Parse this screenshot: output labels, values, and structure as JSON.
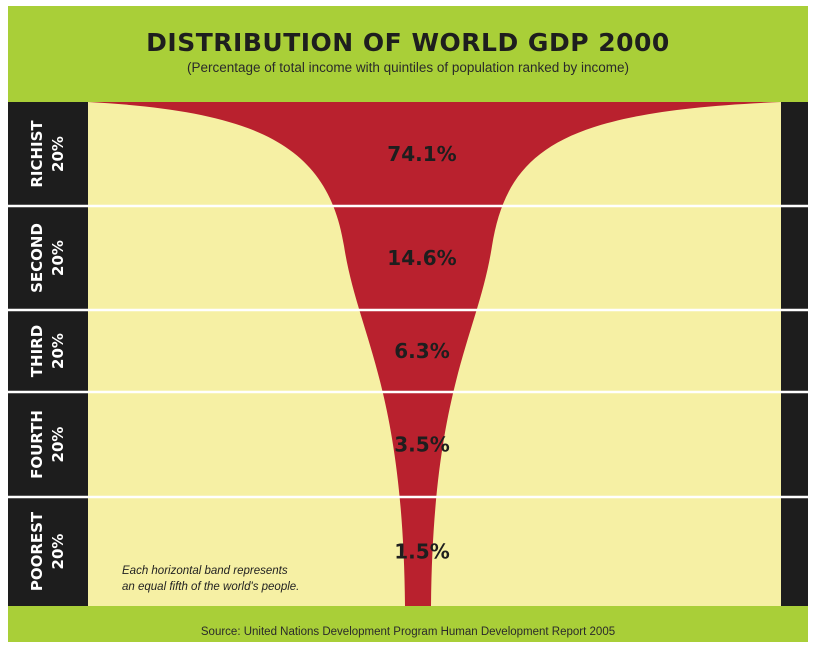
{
  "chart_data": {
    "type": "area",
    "title": "DISTRIBUTION OF WORLD GDP 2000",
    "subtitle": "(Percentage of total income with quintiles of population ranked by income)",
    "bands": [
      {
        "label_line1": "RICHIST",
        "label_line2": "20%",
        "value": 74.1,
        "value_label": "74.1%"
      },
      {
        "label_line1": "SECOND",
        "label_line2": "20%",
        "value": 14.6,
        "value_label": "14.6%"
      },
      {
        "label_line1": "THIRD",
        "label_line2": "20%",
        "value": 6.3,
        "value_label": "6.3%"
      },
      {
        "label_line1": "FOURTH",
        "label_line2": "20%",
        "value": 3.5,
        "value_label": "3.5%"
      },
      {
        "label_line1": "POOREST",
        "label_line2": "20%",
        "value": 1.5,
        "value_label": "1.5%"
      }
    ],
    "note_line1": "Each horizontal band represents",
    "note_line2": "an equal fifth of the world's people.",
    "source": "Source: United Nations Development Program Human Development Report 2005",
    "colors": {
      "frame": "#a9cf38",
      "background": "#f6f0a4",
      "funnel": "#b9212e",
      "side_bars": "#1d1d1d",
      "band_divider": "#ffffff"
    }
  }
}
